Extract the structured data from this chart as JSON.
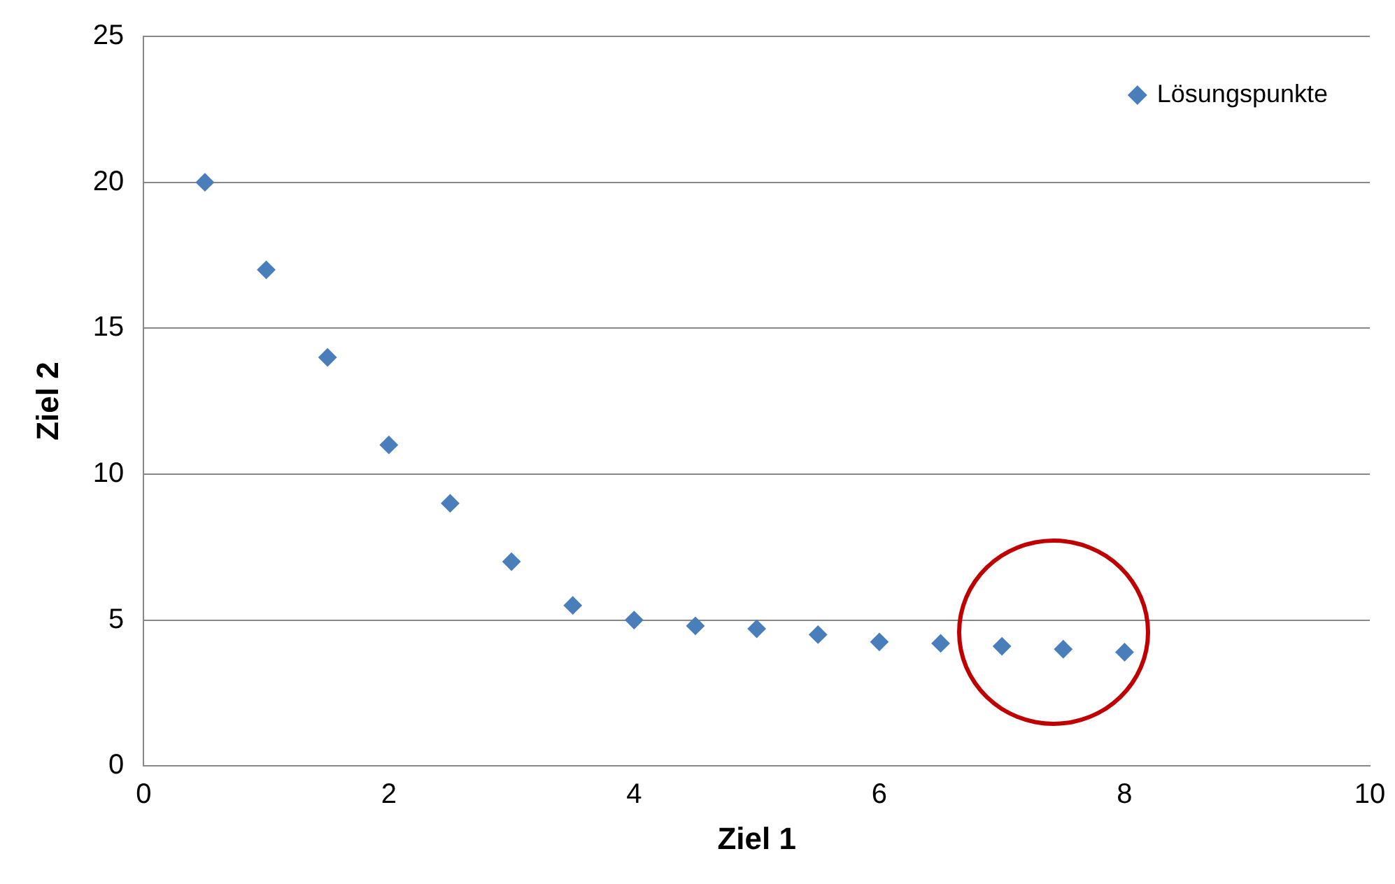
{
  "chart_data": {
    "type": "scatter",
    "xlabel": "Ziel 1",
    "ylabel": "Ziel 2",
    "xlim": [
      0,
      10
    ],
    "xticks": [
      0,
      2,
      4,
      6,
      8,
      10
    ],
    "ylim": [
      0,
      25
    ],
    "yticks": [
      0,
      5,
      10,
      15,
      20,
      25
    ],
    "grid": "y",
    "legend": "top right",
    "marker": "diamond",
    "series": [
      {
        "name": "Lösungspunkte",
        "color": "#4a7ebb",
        "x": [
          0.5,
          1,
          1.5,
          2,
          2.5,
          3,
          3.5,
          4,
          4.5,
          5,
          5.5,
          6,
          6.5,
          7,
          7.5,
          8
        ],
        "values": [
          20,
          17,
          14,
          11,
          9,
          7,
          5.5,
          5,
          4.8,
          4.7,
          4.5,
          4.25,
          4.2,
          4.1,
          4,
          3.9
        ]
      }
    ]
  }
}
